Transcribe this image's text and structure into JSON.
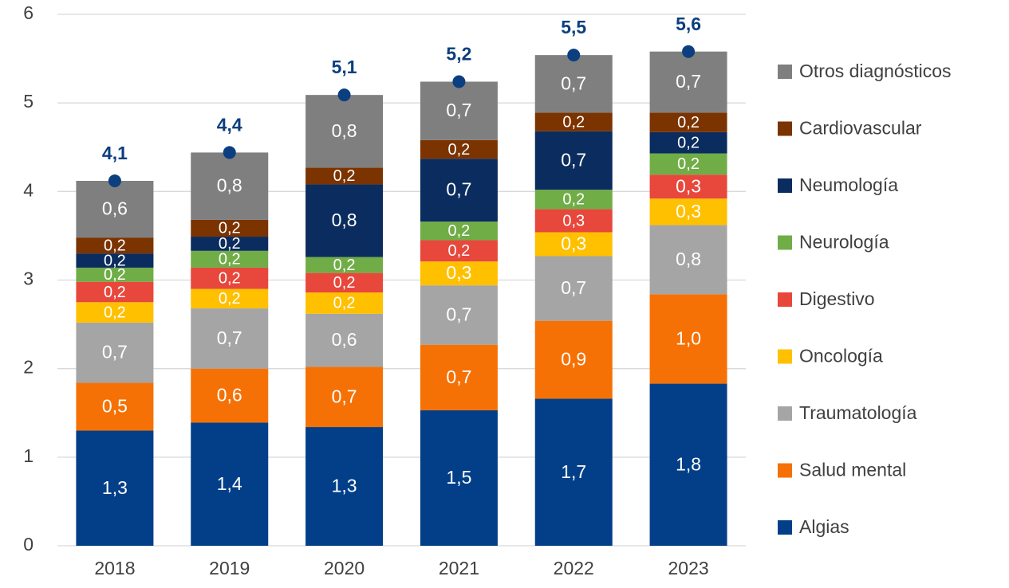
{
  "chart_data": {
    "type": "stacked_bar",
    "categories": [
      "2018",
      "2019",
      "2020",
      "2021",
      "2022",
      "2023"
    ],
    "ylim": [
      0,
      6
    ],
    "yticks": [
      0,
      1,
      2,
      3,
      4,
      5,
      6
    ],
    "grid": true,
    "legend": "right",
    "series": [
      {
        "name": "Algias",
        "color": "#023f88",
        "values": [
          1.3,
          1.39,
          1.34,
          1.53,
          1.66,
          1.83
        ],
        "value_labels": [
          "1,3",
          "1,4",
          "1,3",
          "1,5",
          "1,7",
          "1,8"
        ]
      },
      {
        "name": "Salud mental",
        "color": "#f57105",
        "values": [
          0.54,
          0.61,
          0.68,
          0.74,
          0.88,
          1.01
        ],
        "value_labels": [
          "0,5",
          "0,6",
          "0,7",
          "0,7",
          "0,9",
          "1,0"
        ]
      },
      {
        "name": "Traumatología",
        "color": "#a5a5a5",
        "values": [
          0.68,
          0.68,
          0.6,
          0.67,
          0.73,
          0.78
        ],
        "value_labels": [
          "0,7",
          "0,7",
          "0,6",
          "0,7",
          "0,7",
          "0,8"
        ]
      },
      {
        "name": "Oncología",
        "color": "#ffc000",
        "values": [
          0.23,
          0.22,
          0.24,
          0.27,
          0.27,
          0.3
        ],
        "value_labels": [
          "0,2",
          "0,2",
          "0,2",
          "0,3",
          "0,3",
          "0,3"
        ]
      },
      {
        "name": "Digestivo",
        "color": "#e8473c",
        "values": [
          0.23,
          0.24,
          0.22,
          0.24,
          0.26,
          0.27
        ],
        "value_labels": [
          "0,2",
          "0,2",
          "0,2",
          "0,2",
          "0,3",
          "0,3"
        ]
      },
      {
        "name": "Neurología",
        "color": "#70ad47",
        "values": [
          0.16,
          0.19,
          0.18,
          0.21,
          0.22,
          0.24
        ],
        "value_labels": [
          "0,2",
          "0,2",
          "0,2",
          "0,2",
          "0,2",
          "0,2"
        ]
      },
      {
        "name": "Neumología",
        "color": "#0b2c5e",
        "values": [
          0.16,
          0.16,
          0.82,
          0.71,
          0.66,
          0.24
        ],
        "value_labels": [
          "0,2",
          "0,2",
          "0,8",
          "0,7",
          "0,7",
          "0,2"
        ]
      },
      {
        "name": "Cardiovascular",
        "color": "#7b3300",
        "values": [
          0.18,
          0.19,
          0.19,
          0.21,
          0.21,
          0.22
        ],
        "value_labels": [
          "0,2",
          "0,2",
          "0,2",
          "0,2",
          "0,2",
          "0,2"
        ]
      },
      {
        "name": "Otros diagnósticos",
        "color": "#7f7f7f",
        "values": [
          0.64,
          0.76,
          0.82,
          0.66,
          0.65,
          0.69
        ],
        "value_labels": [
          "0,6",
          "0,8",
          "0,8",
          "0,7",
          "0,7",
          "0,7"
        ]
      }
    ],
    "totals": {
      "color": "#0b3f7f",
      "values": [
        4.12,
        4.44,
        5.09,
        5.24,
        5.54,
        5.58
      ],
      "value_labels": [
        "4,1",
        "4,4",
        "5,1",
        "5,2",
        "5,5",
        "5,6"
      ]
    }
  }
}
